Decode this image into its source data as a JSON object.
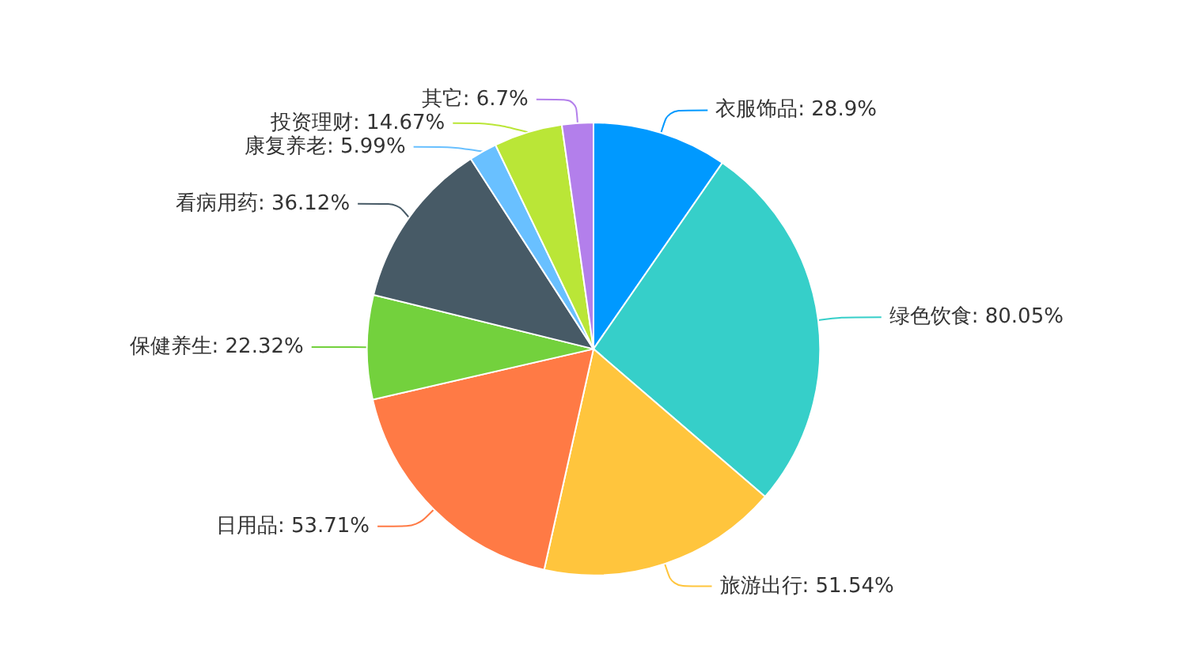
{
  "chart_data": {
    "type": "pie",
    "categories": [
      "衣服饰品",
      "绿色饮食",
      "旅游出行",
      "日用品",
      "保健养生",
      "看病用药",
      "康复养老",
      "投资理财",
      "其它"
    ],
    "values": [
      28.9,
      80.05,
      51.54,
      53.71,
      22.32,
      36.12,
      5.99,
      14.67,
      6.7
    ],
    "value_labels": [
      "28.9%",
      "80.05%",
      "51.54%",
      "53.71%",
      "22.32%",
      "36.12%",
      "5.99%",
      "14.67%",
      "6.7%"
    ],
    "colors": [
      "#0099ff",
      "#36cfc9",
      "#ffc53d",
      "#ff7a45",
      "#73d13d",
      "#475a66",
      "#69c0ff",
      "#bae637",
      "#b37feb"
    ],
    "legend": false
  }
}
